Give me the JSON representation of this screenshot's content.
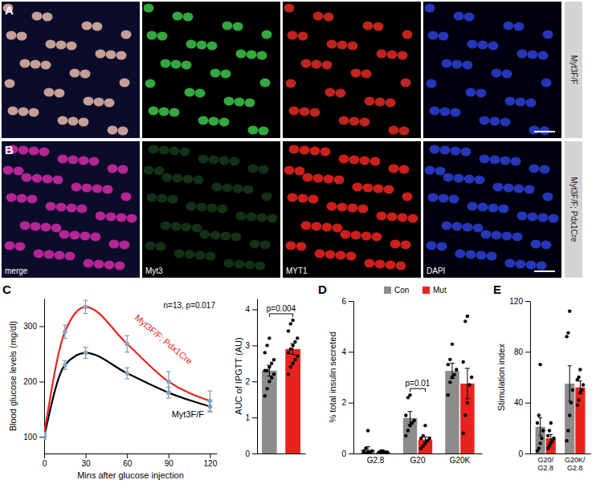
{
  "image_panels": {
    "channels": [
      "merge",
      "Myt3",
      "MYT1",
      "DAPI"
    ],
    "rows": [
      {
        "panel": "A",
        "label": "Myt3F/F"
      },
      {
        "panel": "B",
        "label": "Myt3F/F; Pdx1Cre"
      }
    ]
  },
  "chart_data": [
    {
      "panel": "C",
      "type": "line",
      "x_label": "Mins after glucose injection",
      "y_label": "Blood glucose levels (mg/dl)",
      "annotation": "n=13, p=0.017",
      "x": [
        0,
        15,
        30,
        60,
        90,
        120
      ],
      "xlim": [
        0,
        125
      ],
      "xticks": [
        0,
        30,
        60,
        90,
        120
      ],
      "ylim": [
        70,
        350
      ],
      "yticks": [
        100,
        200,
        300
      ],
      "series": [
        {
          "name": "Myt3F/F",
          "color": "#000000",
          "marker": "circle",
          "values": [
            100,
            230,
            252,
            215,
            180,
            155
          ],
          "errors": [
            4,
            8,
            10,
            10,
            10,
            10
          ]
        },
        {
          "name": "Myt3F/F; Pdx1Cre",
          "color": "#e8231d",
          "marker": "circle",
          "values": [
            105,
            290,
            335,
            268,
            200,
            165
          ],
          "errors": [
            4,
            12,
            12,
            15,
            18,
            18
          ]
        }
      ]
    },
    {
      "type": "bar",
      "y_label": "AUC of IPGTT (AU)",
      "annotation": "p=0.004",
      "categories": [
        null,
        null
      ],
      "values": [
        2.3,
        2.9
      ],
      "errors": [
        0.15,
        0.15
      ],
      "colors": [
        "#8c8c8c",
        "#e8231d"
      ],
      "points": [
        [
          1.6,
          1.8,
          2.0,
          2.1,
          2.2,
          2.3,
          2.3,
          2.4,
          2.5,
          2.6,
          2.8,
          3.0,
          3.2
        ],
        [
          2.2,
          2.4,
          2.5,
          2.6,
          2.7,
          2.8,
          2.9,
          3.0,
          3.1,
          3.2,
          3.4,
          3.6,
          3.7
        ]
      ],
      "ylim": [
        0,
        4.3
      ],
      "yticks": [
        0,
        1,
        2,
        3,
        4
      ]
    },
    {
      "panel": "D",
      "type": "bar",
      "y_label": "% total insulin secreted",
      "legend": "top",
      "annotation": {
        "text": "p=0.01",
        "category": "G20"
      },
      "categories": [
        "G2.8",
        "G20",
        "G20K"
      ],
      "ylim": [
        0,
        6
      ],
      "yticks": [
        0,
        2,
        4,
        6
      ],
      "series": [
        {
          "name": "Con",
          "color": "#8c8c8c",
          "values": [
            0.15,
            1.4,
            3.25
          ],
          "errors": [
            0.12,
            0.25,
            0.3
          ],
          "points": [
            [
              0,
              0,
              0.05,
              0.05,
              0.1,
              0.1,
              0.2,
              0.9
            ],
            [
              0.7,
              0.9,
              1.1,
              1.2,
              1.3,
              1.5,
              2.2,
              2.3
            ],
            [
              2.3,
              2.8,
              3.0,
              3.1,
              3.3,
              3.5,
              3.7,
              4.3
            ]
          ]
        },
        {
          "name": "Mut",
          "color": "#e8231d",
          "values": [
            0.05,
            0.55,
            2.75
          ],
          "errors": [
            0.03,
            0.1,
            0.6
          ],
          "points": [
            [
              0,
              0,
              0,
              0.05,
              0.05,
              0.05,
              0.1,
              0.1
            ],
            [
              0.2,
              0.3,
              0.4,
              0.5,
              0.6,
              0.6,
              0.7,
              1.1
            ],
            [
              0.8,
              1.5,
              2.0,
              2.7,
              3.0,
              3.6,
              5.2,
              5.4
            ]
          ]
        }
      ]
    },
    {
      "panel": "E",
      "type": "bar",
      "y_label": "Stimulation index",
      "categories": [
        "G20/G2.8",
        "G20K/G2.8"
      ],
      "ylim": [
        0,
        120
      ],
      "yticks": [
        0,
        40,
        80,
        120
      ],
      "series": [
        {
          "color": "#8c8c8c",
          "values": [
            21,
            55
          ],
          "errors": [
            7,
            14
          ],
          "points": [
            [
              2,
              4,
              8,
              12,
              18,
              24,
              30,
              70
            ],
            [
              10,
              18,
              30,
              40,
              50,
              92,
              95,
              112
            ]
          ]
        },
        {
          "color": "#e8231d",
          "values": [
            12,
            52
          ],
          "errors": [
            3,
            5
          ],
          "points": [
            [
              4,
              6,
              8,
              10,
              12,
              14,
              18,
              24
            ],
            [
              38,
              42,
              48,
              50,
              54,
              58,
              60,
              66
            ]
          ]
        }
      ]
    }
  ]
}
